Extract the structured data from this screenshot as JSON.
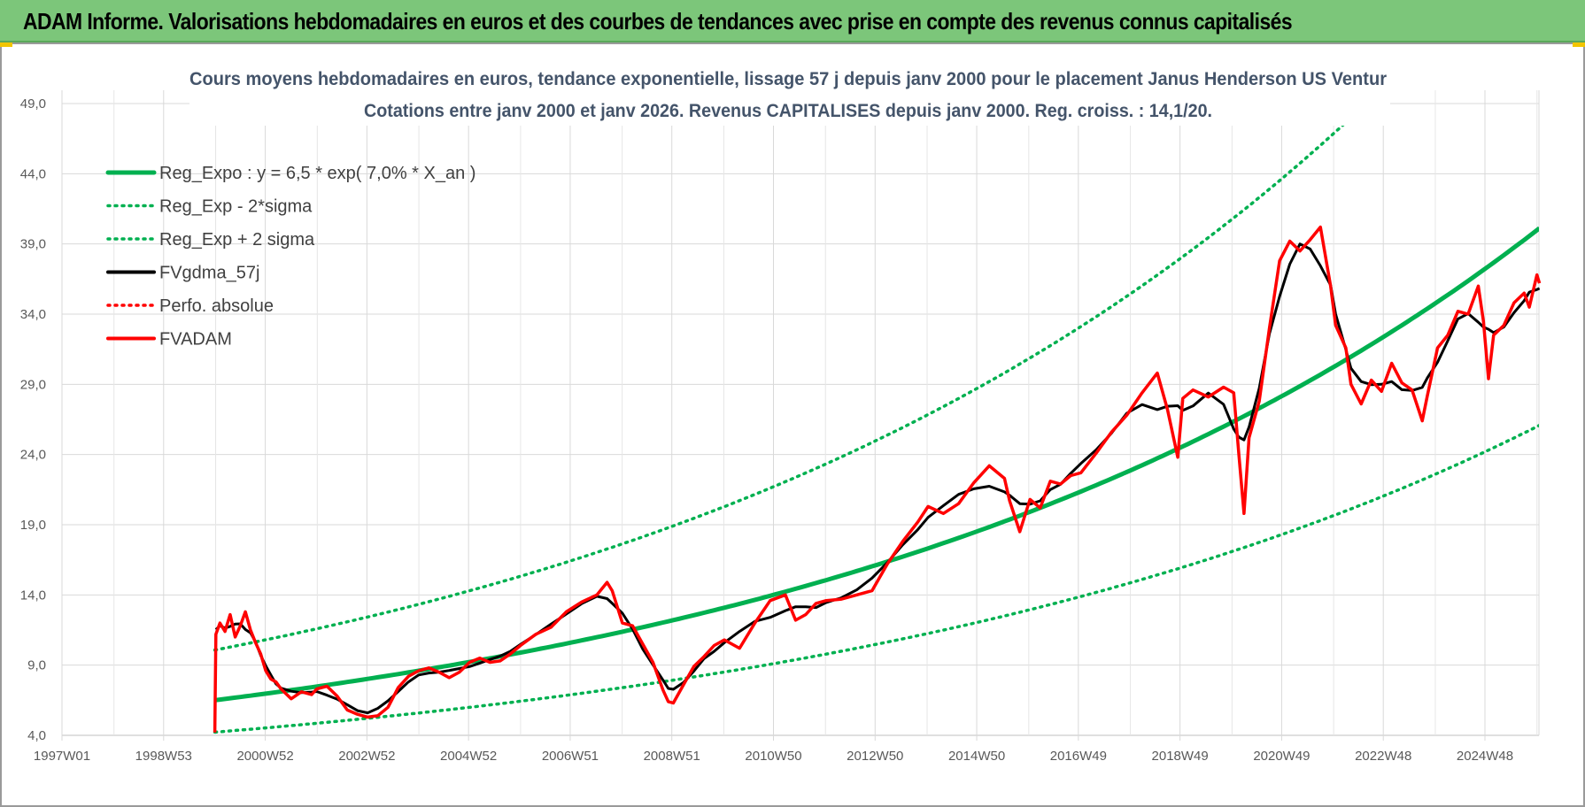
{
  "banner": {
    "title": "ADAM Informe. Valorisations hebdomadaires en euros et des courbes de tendances avec prise en compte des revenus connus capitalisés",
    "background_color": "#7cc67a"
  },
  "chart_data": {
    "type": "line",
    "title_line1": "Cours moyens hebdomadaires en euros, tendance exponentielle, lissage 57 j depuis janv 2000  pour le placement Janus Henderson US Ventur",
    "title_line2": "Cotations entre janv 2000 et janv 2026. Revenus CAPITALISES depuis janv 2000. Reg. croiss. : 14,1/20.",
    "xlabel": "",
    "ylabel": "",
    "xlim": [
      1997.0,
      2026.1
    ],
    "ylim": [
      4.0,
      49.0
    ],
    "y_ticks": [
      "4,0",
      "9,0",
      "14,0",
      "19,0",
      "24,0",
      "29,0",
      "34,0",
      "39,0",
      "44,0",
      "49,0"
    ],
    "x_tick_labels": [
      "1997W01",
      "1998W53",
      "2000W52",
      "2002W52",
      "2004W52",
      "2006W51",
      "2008W51",
      "2010W50",
      "2012W50",
      "2014W50",
      "2016W49",
      "2018W49",
      "2020W49",
      "2022W48",
      "2024W48"
    ],
    "grid": true,
    "legend_position": "top-left",
    "regression": {
      "a": 6.5,
      "rate": 0.07,
      "start_year": 2000.0,
      "sigma_factor_upper": 1.55,
      "sigma_factor_lower": 0.65
    },
    "series": [
      {
        "name": "Reg_Expo : y = 6,5 * exp( 7,0% *  X_an )",
        "color": "#00b050",
        "style": "solid",
        "kind": "reg"
      },
      {
        "name": "Reg_Exp - 2*sigma",
        "color": "#00b050",
        "style": "dotted",
        "kind": "reg_low"
      },
      {
        "name": "Reg_Exp + 2 sigma",
        "color": "#00b050",
        "style": "dotted",
        "kind": "reg_high"
      },
      {
        "name": "FVgdma_57j",
        "color": "#000000",
        "style": "solid",
        "kind": "smooth"
      },
      {
        "name": "Perfo. absolue",
        "color": "#ff0000",
        "style": "dotted",
        "kind": "none"
      },
      {
        "name": "FVADAM",
        "color": "#ff0000",
        "style": "solid",
        "kind": "price",
        "x": [
          2000.0,
          2000.02,
          2000.1,
          2000.2,
          2000.3,
          2000.4,
          2000.5,
          2000.6,
          2000.7,
          2000.8,
          2000.9,
          2001.0,
          2001.1,
          2001.2,
          2001.3,
          2001.5,
          2001.7,
          2001.9,
          2002.0,
          2002.2,
          2002.4,
          2002.6,
          2002.8,
          2003.0,
          2003.2,
          2003.4,
          2003.6,
          2003.8,
          2004.0,
          2004.2,
          2004.4,
          2004.6,
          2004.8,
          2005.0,
          2005.2,
          2005.4,
          2005.6,
          2005.8,
          2006.0,
          2006.3,
          2006.6,
          2006.9,
          2007.2,
          2007.5,
          2007.7,
          2007.8,
          2008.0,
          2008.2,
          2008.4,
          2008.6,
          2008.8,
          2008.9,
          2009.0,
          2009.2,
          2009.4,
          2009.6,
          2009.8,
          2010.0,
          2010.3,
          2010.6,
          2010.9,
          2011.2,
          2011.4,
          2011.6,
          2011.8,
          2012.0,
          2012.3,
          2012.6,
          2012.9,
          2013.2,
          2013.5,
          2013.8,
          2014.0,
          2014.3,
          2014.6,
          2014.9,
          2015.2,
          2015.5,
          2015.6,
          2015.8,
          2016.0,
          2016.2,
          2016.4,
          2016.6,
          2016.8,
          2017.0,
          2017.3,
          2017.6,
          2017.9,
          2018.2,
          2018.5,
          2018.7,
          2018.9,
          2019.0,
          2019.2,
          2019.5,
          2019.8,
          2020.0,
          2020.1,
          2020.2,
          2020.3,
          2020.5,
          2020.7,
          2020.9,
          2021.1,
          2021.3,
          2021.5,
          2021.7,
          2021.9,
          2022.0,
          2022.2,
          2022.3,
          2022.5,
          2022.7,
          2022.9,
          2023.1,
          2023.3,
          2023.5,
          2023.7,
          2023.8,
          2024.0,
          2024.2,
          2024.4,
          2024.6,
          2024.8,
          2024.9,
          2025.0,
          2025.1,
          2025.3,
          2025.5,
          2025.7,
          2025.8,
          2025.95,
          2026.0
        ],
        "values": [
          4.2,
          11.2,
          12.0,
          11.4,
          12.6,
          11.0,
          11.8,
          12.8,
          11.5,
          10.6,
          9.8,
          8.6,
          8.0,
          7.8,
          7.3,
          6.6,
          7.1,
          6.9,
          7.3,
          7.5,
          6.8,
          5.8,
          5.5,
          5.3,
          5.4,
          6.0,
          7.4,
          8.2,
          8.6,
          8.8,
          8.5,
          8.1,
          8.5,
          9.2,
          9.5,
          9.2,
          9.3,
          9.8,
          10.4,
          11.2,
          11.7,
          12.8,
          13.5,
          14.0,
          14.9,
          14.3,
          12.0,
          11.8,
          10.5,
          9.2,
          7.2,
          6.4,
          6.3,
          7.6,
          8.9,
          9.6,
          10.4,
          10.8,
          10.2,
          12.0,
          13.6,
          14.0,
          12.2,
          12.6,
          13.4,
          13.6,
          13.7,
          14.0,
          14.3,
          16.2,
          17.8,
          19.2,
          20.3,
          19.8,
          20.5,
          22.0,
          23.2,
          22.3,
          20.7,
          18.5,
          20.8,
          20.2,
          22.1,
          21.9,
          22.5,
          22.7,
          24.1,
          25.6,
          26.8,
          28.4,
          29.8,
          27.2,
          23.8,
          28.0,
          28.6,
          28.1,
          28.8,
          28.4,
          24.0,
          19.8,
          25.2,
          27.8,
          33.0,
          37.8,
          39.2,
          38.5,
          39.3,
          40.2,
          36.0,
          33.2,
          31.6,
          29.0,
          27.6,
          29.3,
          28.5,
          30.5,
          29.1,
          28.6,
          26.4,
          28.2,
          31.6,
          32.5,
          34.2,
          34.0,
          36.0,
          33.5,
          29.4,
          32.5,
          33.2,
          34.8,
          35.5,
          34.5,
          36.8,
          36.2
        ]
      }
    ]
  }
}
